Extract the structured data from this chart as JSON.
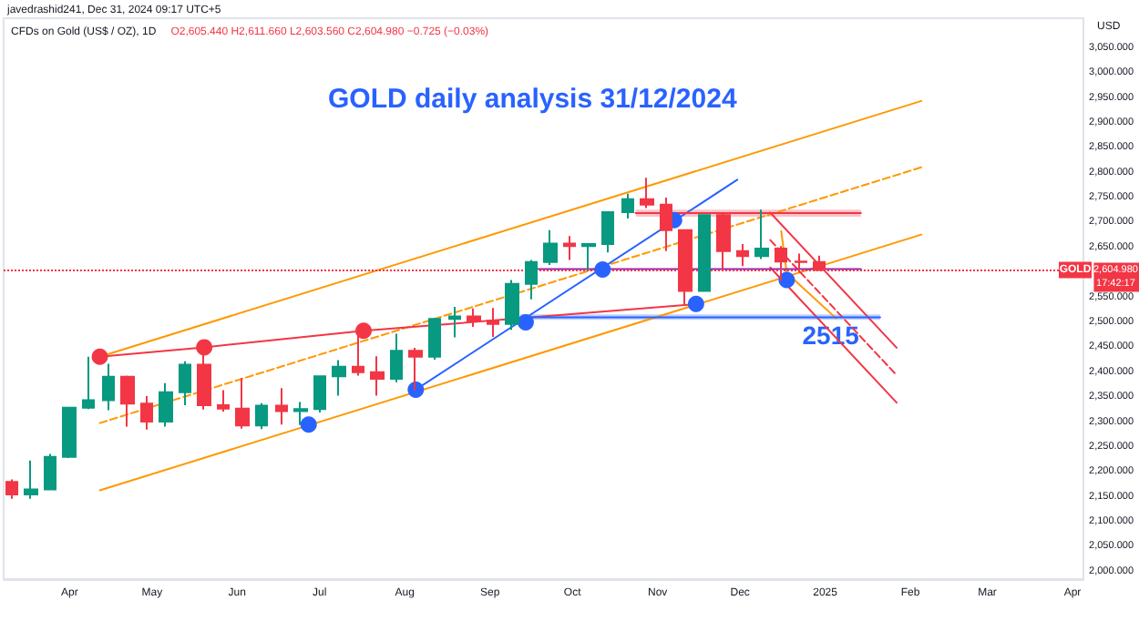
{
  "chart_data": {
    "type": "candlestick",
    "title": "GOLD daily analysis 31/12/2024",
    "subtitle": "CFDs on Gold (US$ / OZ), 1D",
    "ylabel": "USD",
    "annotations": [
      "javedrashid241, Dec 31, 2024 09:17 UTC+5",
      "O2,605.440 H2,611.660 L2,603.560 C2,604.980 −0.725 (−0.03%)",
      "2,604.980",
      "17:42:17",
      {
        "text": "2515",
        "x": "2025-01-03",
        "y": 2474
      }
    ],
    "x": [
      "2024-03-11",
      "2024-03-18",
      "2024-03-25",
      "2024-04-01",
      "2024-04-08",
      "2024-04-15",
      "2024-04-22",
      "2024-04-29",
      "2024-05-06",
      "2024-05-13",
      "2024-05-20",
      "2024-05-27",
      "2024-06-03",
      "2024-06-10",
      "2024-06-17",
      "2024-06-24",
      "2024-07-01",
      "2024-07-08",
      "2024-07-15",
      "2024-07-22",
      "2024-07-29",
      "2024-08-05",
      "2024-08-12",
      "2024-08-19",
      "2024-08-26",
      "2024-09-02",
      "2024-09-09",
      "2024-09-16",
      "2024-09-23",
      "2024-09-30",
      "2024-10-07",
      "2024-10-14",
      "2024-10-21",
      "2024-10-28",
      "2024-11-04",
      "2024-11-11",
      "2024-11-18",
      "2024-11-25",
      "2024-12-02",
      "2024-12-09",
      "2024-12-16",
      "2024-12-23",
      "2024-12-30"
    ],
    "ohlc": [
      [
        2180,
        2185,
        2146,
        2155
      ],
      [
        2155,
        2223,
        2146,
        2165
      ],
      [
        2165,
        2236,
        2163,
        2230
      ],
      [
        2230,
        2330,
        2228,
        2329
      ],
      [
        2329,
        2431,
        2326,
        2344
      ],
      [
        2344,
        2417,
        2324,
        2391
      ],
      [
        2391,
        2393,
        2291,
        2337
      ],
      [
        2337,
        2352,
        2285,
        2301
      ],
      [
        2301,
        2378,
        2291,
        2360
      ],
      [
        2360,
        2422,
        2334,
        2415
      ],
      [
        2415,
        2450,
        2325,
        2334
      ],
      [
        2334,
        2364,
        2321,
        2327
      ],
      [
        2327,
        2388,
        2287,
        2293
      ],
      [
        2293,
        2338,
        2286,
        2333
      ],
      [
        2333,
        2368,
        2295,
        2322
      ],
      [
        2322,
        2340,
        2294,
        2326
      ],
      [
        2326,
        2392,
        2319,
        2392
      ],
      [
        2392,
        2424,
        2353,
        2411
      ],
      [
        2411,
        2483,
        2393,
        2400
      ],
      [
        2400,
        2432,
        2353,
        2387
      ],
      [
        2387,
        2477,
        2380,
        2443
      ],
      [
        2443,
        2449,
        2364,
        2431
      ],
      [
        2431,
        2509,
        2425,
        2507
      ],
      [
        2507,
        2531,
        2470,
        2512
      ],
      [
        2512,
        2528,
        2491,
        2503
      ],
      [
        2503,
        2529,
        2471,
        2497
      ],
      [
        2497,
        2585,
        2485,
        2577
      ],
      [
        2577,
        2625,
        2546,
        2621
      ],
      [
        2621,
        2685,
        2615,
        2658
      ],
      [
        2658,
        2673,
        2625,
        2653
      ],
      [
        2653,
        2658,
        2605,
        2657
      ],
      [
        2657,
        2722,
        2640,
        2721
      ],
      [
        2721,
        2758,
        2708,
        2747
      ],
      [
        2747,
        2790,
        2729,
        2736
      ],
      [
        2736,
        2750,
        2643,
        2685
      ],
      [
        2685,
        2686,
        2536,
        2563
      ],
      [
        2563,
        2716,
        2563,
        2715
      ],
      [
        2715,
        2721,
        2605,
        2643
      ],
      [
        2643,
        2657,
        2613,
        2633
      ],
      [
        2633,
        2726,
        2627,
        2648
      ],
      [
        2648,
        2653,
        2583,
        2622
      ],
      [
        2622,
        2638,
        2600,
        2621
      ],
      [
        2621,
        2634,
        2603,
        2605
      ]
    ],
    "colors": [
      "#f23645",
      "#089981",
      "#089981",
      "#089981",
      "#089981",
      "#089981",
      "#f23645",
      "#f23645",
      "#089981",
      "#089981",
      "#f23645",
      "#f23645",
      "#f23645",
      "#089981",
      "#f23645",
      "#089981",
      "#089981",
      "#089981",
      "#f23645",
      "#f23645",
      "#089981",
      "#f23645",
      "#089981",
      "#089981",
      "#f23645",
      "#f23645",
      "#089981",
      "#089981",
      "#089981",
      "#f23645",
      "#089981",
      "#089981",
      "#089981",
      "#f23645",
      "#f23645",
      "#f23645",
      "#089981",
      "#f23645",
      "#f23645",
      "#089981",
      "#f23645",
      "#f23645",
      "#f23645"
    ],
    "series": [
      {
        "type": "line",
        "color": "#ff9800",
        "x": [
          "2024-04-12",
          "2025-02-05"
        ],
        "values": [
          2431,
          2944
        ]
      },
      {
        "type": "line",
        "color": "#ff9800",
        "x": [
          "2024-04-12",
          "2025-02-05"
        ],
        "values": [
          2163,
          2676
        ]
      },
      {
        "type": "line",
        "color": "#ff9800",
        "line_style": "dashed",
        "x": [
          "2024-04-12",
          "2025-02-05"
        ],
        "values": [
          2298,
          2811
        ]
      },
      {
        "type": "line",
        "color": "#2962ff",
        "x": [
          "2024-08-05",
          "2024-11-30"
        ],
        "values": [
          2365,
          2786
        ]
      },
      {
        "type": "line",
        "color": "#f23645",
        "x": [
          "2024-04-12",
          "2024-05-20",
          "2024-07-17",
          "2024-11-14"
        ],
        "values": [
          2431,
          2450,
          2483,
          2536
        ]
      },
      {
        "type": "line",
        "color": "#f23645",
        "x": [
          "2024-12-12",
          "2025-01-27"
        ],
        "values": [
          2720,
          2449
        ]
      },
      {
        "type": "line",
        "color": "#f23645",
        "x": [
          "2024-12-12",
          "2025-01-27"
        ],
        "values": [
          2610,
          2339
        ]
      },
      {
        "type": "line",
        "color": "#f23645",
        "line_style": "dashed",
        "x": [
          "2024-12-12",
          "2025-01-27"
        ],
        "values": [
          2665,
          2394
        ]
      },
      {
        "type": "line",
        "color": "#ff9800",
        "x": [
          "2024-12-16",
          "2024-12-18",
          "2025-01-05"
        ],
        "values": [
          2683,
          2599,
          2508
        ]
      },
      {
        "type": "line",
        "color": "#9c27b0",
        "x": [
          "2024-09-14",
          "2025-01-14"
        ],
        "values": [
          2607,
          2607
        ]
      },
      {
        "type": "line",
        "color": "#2962ff",
        "x": [
          "2024-09-12",
          "2025-01-21"
        ],
        "values": [
          2510,
          2510
        ],
        "lower": [
          2505,
          2505
        ],
        "upper": [
          2516,
          2516
        ]
      },
      {
        "type": "line",
        "color": "#f23645",
        "x": [
          "2024-10-24",
          "2025-01-14"
        ],
        "values": [
          2719,
          2719
        ],
        "lower": [
          2712,
          2712
        ],
        "upper": [
          2726,
          2726
        ]
      },
      {
        "type": "scatter",
        "color": "#f23645",
        "marker": "circle",
        "x": [
          "2024-04-12",
          "2024-05-20",
          "2024-07-17"
        ],
        "values": [
          2431,
          2450,
          2483
        ]
      },
      {
        "type": "scatter",
        "color": "#2962ff",
        "marker": "circle",
        "x": [
          "2024-06-27",
          "2024-08-05",
          "2024-09-14",
          "2024-10-12",
          "2024-11-07",
          "2024-11-15",
          "2024-12-18"
        ],
        "values": [
          2295,
          2365,
          2500,
          2606,
          2705,
          2537,
          2585
        ]
      }
    ],
    "ref_lines": [
      {
        "axis": "y",
        "value": 2604.98,
        "label": "GOLD",
        "color": "#f23645",
        "line_style": "dotted"
      }
    ],
    "xlim": [
      "2024-03-08",
      "2025-04-05"
    ],
    "xticks": [
      {
        "value": "2024-04-01",
        "label": "Apr"
      },
      {
        "value": "2024-05-01",
        "label": "May"
      },
      {
        "value": "2024-06-01",
        "label": "Jun"
      },
      {
        "value": "2024-07-01",
        "label": "Jul"
      },
      {
        "value": "2024-08-01",
        "label": "Aug"
      },
      {
        "value": "2024-09-01",
        "label": "Sep"
      },
      {
        "value": "2024-10-01",
        "label": "Oct"
      },
      {
        "value": "2024-11-01",
        "label": "Nov"
      },
      {
        "value": "2024-12-01",
        "label": "Dec"
      },
      {
        "value": "2025-01-01",
        "label": "2025"
      },
      {
        "value": "2025-02-01",
        "label": "Feb"
      },
      {
        "value": "2025-03-01",
        "label": "Mar"
      },
      {
        "value": "2025-04-01",
        "label": "Apr"
      }
    ],
    "ylim": [
      1985,
      3110
    ],
    "yticks": [
      {
        "value": 2000,
        "label": "2,000.000"
      },
      {
        "value": 2050,
        "label": "2,050.000"
      },
      {
        "value": 2100,
        "label": "2,100.000"
      },
      {
        "value": 2150,
        "label": "2,150.000"
      },
      {
        "value": 2200,
        "label": "2,200.000"
      },
      {
        "value": 2250,
        "label": "2,250.000"
      },
      {
        "value": 2300,
        "label": "2,300.000"
      },
      {
        "value": 2350,
        "label": "2,350.000"
      },
      {
        "value": 2400,
        "label": "2,400.000"
      },
      {
        "value": 2450,
        "label": "2,450.000"
      },
      {
        "value": 2500,
        "label": "2,500.000"
      },
      {
        "value": 2550,
        "label": "2,550.000"
      },
      {
        "value": 2650,
        "label": "2,650.000"
      },
      {
        "value": 2700,
        "label": "2,700.000"
      },
      {
        "value": 2750,
        "label": "2,750.000"
      },
      {
        "value": 2800,
        "label": "2,800.000"
      },
      {
        "value": 2850,
        "label": "2,850.000"
      },
      {
        "value": 2900,
        "label": "2,900.000"
      },
      {
        "value": 2950,
        "label": "2,950.000"
      },
      {
        "value": 3000,
        "label": "3,000.000"
      },
      {
        "value": 3050,
        "label": "3,050.000"
      }
    ],
    "grid": false
  }
}
